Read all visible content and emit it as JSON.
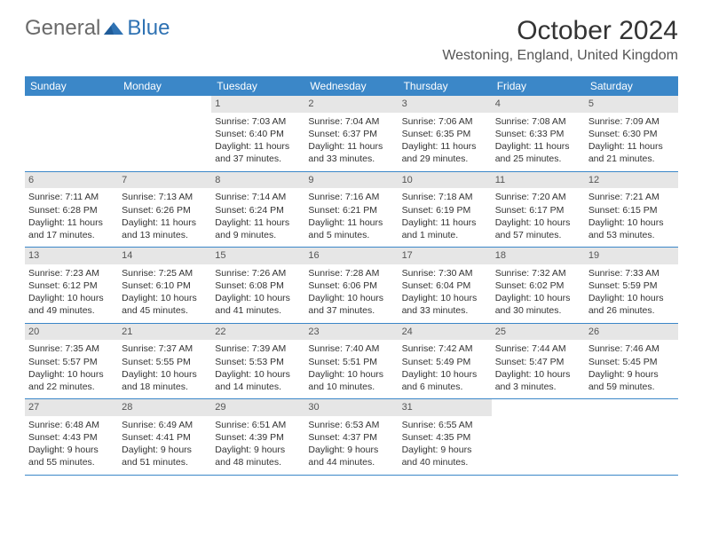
{
  "logo": {
    "text1": "General",
    "text2": "Blue"
  },
  "title": "October 2024",
  "location": "Westoning, England, United Kingdom",
  "colors": {
    "header_bg": "#3b87c8",
    "header_text": "#ffffff",
    "daynum_bg": "#e6e6e6",
    "daynum_text": "#555555",
    "body_text": "#333333",
    "logo_gray": "#6a6a6a",
    "logo_blue": "#2f72b3",
    "row_border": "#3b87c8"
  },
  "day_names": [
    "Sunday",
    "Monday",
    "Tuesday",
    "Wednesday",
    "Thursday",
    "Friday",
    "Saturday"
  ],
  "weeks": [
    [
      null,
      null,
      {
        "n": "1",
        "sr": "Sunrise: 7:03 AM",
        "ss": "Sunset: 6:40 PM",
        "dl": "Daylight: 11 hours and 37 minutes."
      },
      {
        "n": "2",
        "sr": "Sunrise: 7:04 AM",
        "ss": "Sunset: 6:37 PM",
        "dl": "Daylight: 11 hours and 33 minutes."
      },
      {
        "n": "3",
        "sr": "Sunrise: 7:06 AM",
        "ss": "Sunset: 6:35 PM",
        "dl": "Daylight: 11 hours and 29 minutes."
      },
      {
        "n": "4",
        "sr": "Sunrise: 7:08 AM",
        "ss": "Sunset: 6:33 PM",
        "dl": "Daylight: 11 hours and 25 minutes."
      },
      {
        "n": "5",
        "sr": "Sunrise: 7:09 AM",
        "ss": "Sunset: 6:30 PM",
        "dl": "Daylight: 11 hours and 21 minutes."
      }
    ],
    [
      {
        "n": "6",
        "sr": "Sunrise: 7:11 AM",
        "ss": "Sunset: 6:28 PM",
        "dl": "Daylight: 11 hours and 17 minutes."
      },
      {
        "n": "7",
        "sr": "Sunrise: 7:13 AM",
        "ss": "Sunset: 6:26 PM",
        "dl": "Daylight: 11 hours and 13 minutes."
      },
      {
        "n": "8",
        "sr": "Sunrise: 7:14 AM",
        "ss": "Sunset: 6:24 PM",
        "dl": "Daylight: 11 hours and 9 minutes."
      },
      {
        "n": "9",
        "sr": "Sunrise: 7:16 AM",
        "ss": "Sunset: 6:21 PM",
        "dl": "Daylight: 11 hours and 5 minutes."
      },
      {
        "n": "10",
        "sr": "Sunrise: 7:18 AM",
        "ss": "Sunset: 6:19 PM",
        "dl": "Daylight: 11 hours and 1 minute."
      },
      {
        "n": "11",
        "sr": "Sunrise: 7:20 AM",
        "ss": "Sunset: 6:17 PM",
        "dl": "Daylight: 10 hours and 57 minutes."
      },
      {
        "n": "12",
        "sr": "Sunrise: 7:21 AM",
        "ss": "Sunset: 6:15 PM",
        "dl": "Daylight: 10 hours and 53 minutes."
      }
    ],
    [
      {
        "n": "13",
        "sr": "Sunrise: 7:23 AM",
        "ss": "Sunset: 6:12 PM",
        "dl": "Daylight: 10 hours and 49 minutes."
      },
      {
        "n": "14",
        "sr": "Sunrise: 7:25 AM",
        "ss": "Sunset: 6:10 PM",
        "dl": "Daylight: 10 hours and 45 minutes."
      },
      {
        "n": "15",
        "sr": "Sunrise: 7:26 AM",
        "ss": "Sunset: 6:08 PM",
        "dl": "Daylight: 10 hours and 41 minutes."
      },
      {
        "n": "16",
        "sr": "Sunrise: 7:28 AM",
        "ss": "Sunset: 6:06 PM",
        "dl": "Daylight: 10 hours and 37 minutes."
      },
      {
        "n": "17",
        "sr": "Sunrise: 7:30 AM",
        "ss": "Sunset: 6:04 PM",
        "dl": "Daylight: 10 hours and 33 minutes."
      },
      {
        "n": "18",
        "sr": "Sunrise: 7:32 AM",
        "ss": "Sunset: 6:02 PM",
        "dl": "Daylight: 10 hours and 30 minutes."
      },
      {
        "n": "19",
        "sr": "Sunrise: 7:33 AM",
        "ss": "Sunset: 5:59 PM",
        "dl": "Daylight: 10 hours and 26 minutes."
      }
    ],
    [
      {
        "n": "20",
        "sr": "Sunrise: 7:35 AM",
        "ss": "Sunset: 5:57 PM",
        "dl": "Daylight: 10 hours and 22 minutes."
      },
      {
        "n": "21",
        "sr": "Sunrise: 7:37 AM",
        "ss": "Sunset: 5:55 PM",
        "dl": "Daylight: 10 hours and 18 minutes."
      },
      {
        "n": "22",
        "sr": "Sunrise: 7:39 AM",
        "ss": "Sunset: 5:53 PM",
        "dl": "Daylight: 10 hours and 14 minutes."
      },
      {
        "n": "23",
        "sr": "Sunrise: 7:40 AM",
        "ss": "Sunset: 5:51 PM",
        "dl": "Daylight: 10 hours and 10 minutes."
      },
      {
        "n": "24",
        "sr": "Sunrise: 7:42 AM",
        "ss": "Sunset: 5:49 PM",
        "dl": "Daylight: 10 hours and 6 minutes."
      },
      {
        "n": "25",
        "sr": "Sunrise: 7:44 AM",
        "ss": "Sunset: 5:47 PM",
        "dl": "Daylight: 10 hours and 3 minutes."
      },
      {
        "n": "26",
        "sr": "Sunrise: 7:46 AM",
        "ss": "Sunset: 5:45 PM",
        "dl": "Daylight: 9 hours and 59 minutes."
      }
    ],
    [
      {
        "n": "27",
        "sr": "Sunrise: 6:48 AM",
        "ss": "Sunset: 4:43 PM",
        "dl": "Daylight: 9 hours and 55 minutes."
      },
      {
        "n": "28",
        "sr": "Sunrise: 6:49 AM",
        "ss": "Sunset: 4:41 PM",
        "dl": "Daylight: 9 hours and 51 minutes."
      },
      {
        "n": "29",
        "sr": "Sunrise: 6:51 AM",
        "ss": "Sunset: 4:39 PM",
        "dl": "Daylight: 9 hours and 48 minutes."
      },
      {
        "n": "30",
        "sr": "Sunrise: 6:53 AM",
        "ss": "Sunset: 4:37 PM",
        "dl": "Daylight: 9 hours and 44 minutes."
      },
      {
        "n": "31",
        "sr": "Sunrise: 6:55 AM",
        "ss": "Sunset: 4:35 PM",
        "dl": "Daylight: 9 hours and 40 minutes."
      },
      null,
      null
    ]
  ]
}
